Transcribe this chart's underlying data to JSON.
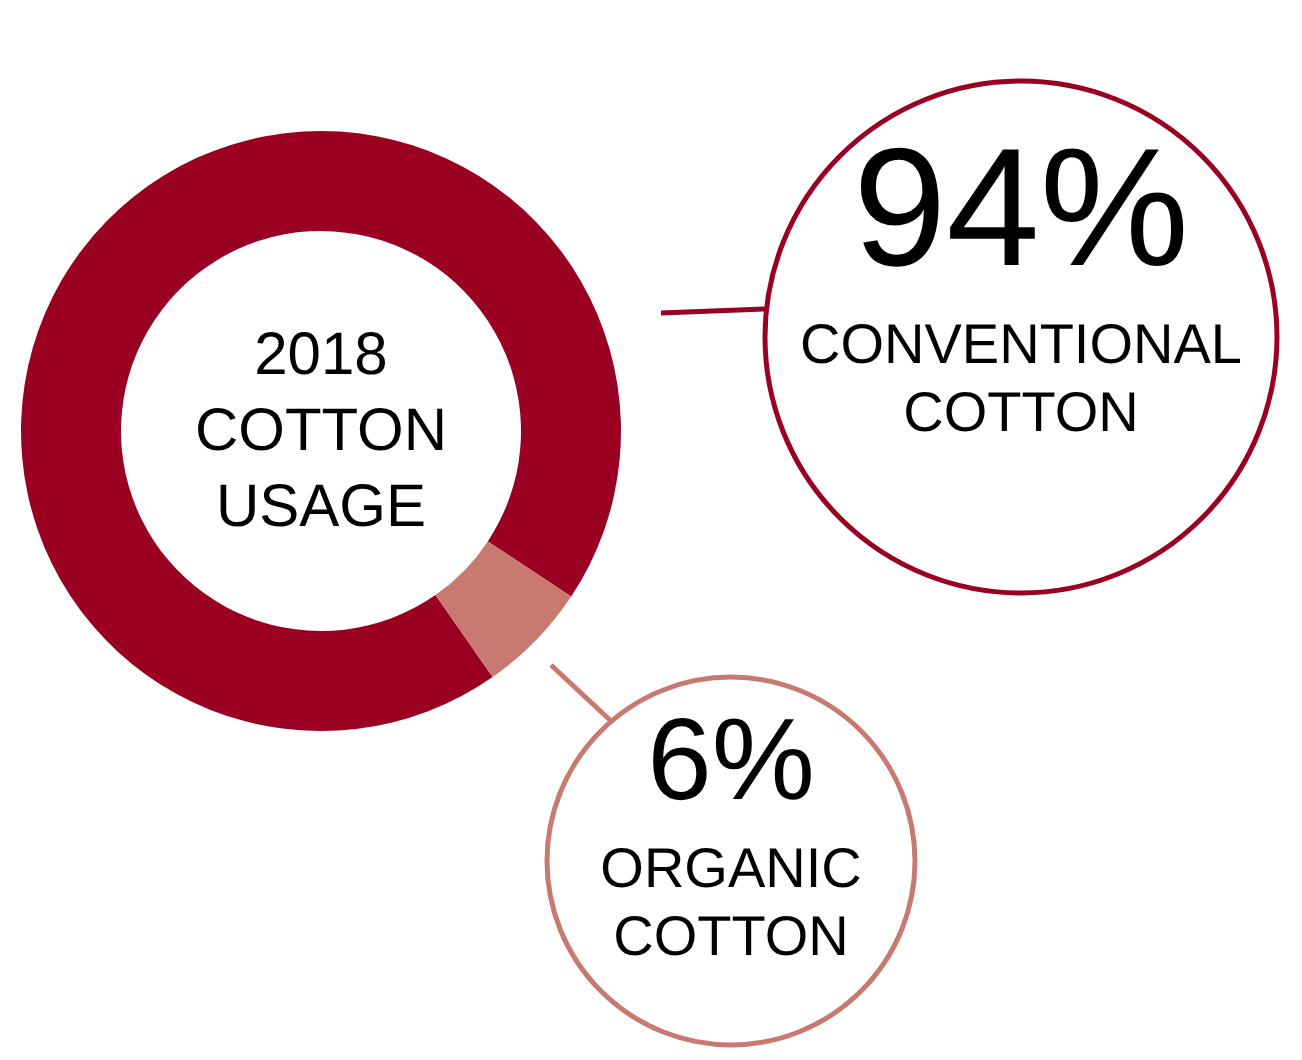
{
  "chart_data": {
    "type": "donut",
    "title": "2018 COTTON USAGE",
    "categories": [
      "CONVENTIONAL COTTON",
      "ORGANIC COTTON"
    ],
    "values": [
      94,
      6
    ],
    "colors": [
      "#990022",
      "#c87a70"
    ],
    "value_labels": [
      "94%",
      "6%"
    ],
    "legend": "right"
  }
}
